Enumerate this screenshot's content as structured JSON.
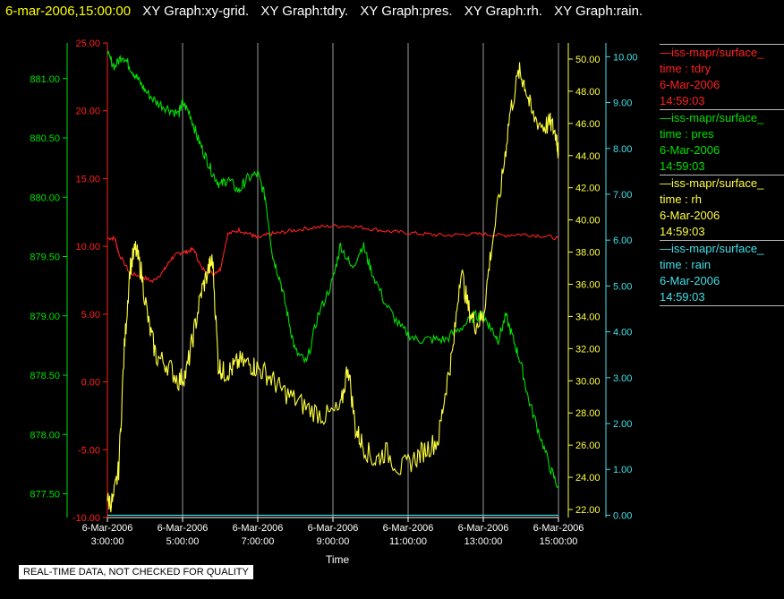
{
  "header": {
    "timestamp": "6-mar-2006,15:00:00",
    "graphs": [
      "XY Graph:xy-grid.",
      "XY Graph:tdry.",
      "XY Graph:pres.",
      "XY Graph:rh.",
      "XY Graph:rain."
    ]
  },
  "legend": [
    {
      "name": "—iss-mapr/surface_",
      "var": "time : tdry",
      "date": "6-Mar-2006",
      "time": "14:59:03",
      "color": "#ff2020"
    },
    {
      "name": "—iss-mapr/surface_",
      "var": "time : pres",
      "date": "6-Mar-2006",
      "time": "14:59:03",
      "color": "#00e000"
    },
    {
      "name": "—iss-mapr/surface_",
      "var": "time : rh",
      "date": "6-Mar-2006",
      "time": "14:59:03",
      "color": "#ffff40"
    },
    {
      "name": "—iss-mapr/surface_",
      "var": "time : rain",
      "date": "6-Mar-2006",
      "time": "14:59:03",
      "color": "#40e0e8"
    }
  ],
  "note": "REAL-TIME DATA, NOT CHECKED FOR QUALITY",
  "chart_data": {
    "type": "line",
    "xlabel": "Time",
    "x_ticks": [
      {
        "date": "6-Mar-2006",
        "time": "3:00:00",
        "h": 3
      },
      {
        "date": "6-Mar-2006",
        "time": "5:00:00",
        "h": 5
      },
      {
        "date": "6-Mar-2006",
        "time": "7:00:00",
        "h": 7
      },
      {
        "date": "6-Mar-2006",
        "time": "9:00:00",
        "h": 9
      },
      {
        "date": "6-Mar-2006",
        "time": "11:00:00",
        "h": 11
      },
      {
        "date": "6-Mar-2006",
        "time": "13:00:00",
        "h": 13
      },
      {
        "date": "6-Mar-2006",
        "time": "15:00:00",
        "h": 15
      }
    ],
    "xlim": [
      3,
      15
    ],
    "grid": "vertical",
    "axes": {
      "pres": {
        "ylim": [
          877.3,
          881.3
        ],
        "ticks": [
          "877.50",
          "878.00",
          "878.50",
          "879.00",
          "879.50",
          "880.00",
          "880.50",
          "881.00"
        ],
        "color": "#00e000",
        "side": "left-outer"
      },
      "tdry": {
        "ylim": [
          -10,
          25
        ],
        "ticks": [
          "-10.00",
          "-5.00",
          "0.00",
          "5.00",
          "10.00",
          "15.00",
          "20.00",
          "25.00"
        ],
        "color": "#ff2020",
        "side": "left-inner"
      },
      "rh": {
        "ylim": [
          21.5,
          51
        ],
        "ticks": [
          "22.00",
          "24.00",
          "26.00",
          "28.00",
          "30.00",
          "32.00",
          "34.00",
          "36.00",
          "38.00",
          "40.00",
          "42.00",
          "44.00",
          "46.00",
          "48.00",
          "50.00"
        ],
        "color": "#ffff40",
        "side": "right-inner"
      },
      "rain": {
        "ylim": [
          -0.05,
          10.3
        ],
        "ticks": [
          "0.00",
          "1.00",
          "2.00",
          "3.00",
          "4.00",
          "5.00",
          "6.00",
          "7.00",
          "8.00",
          "9.00",
          "10.00"
        ],
        "color": "#40e0e8",
        "side": "right-outer"
      }
    },
    "series": [
      {
        "name": "tdry",
        "axis": "tdry",
        "color": "#ff2020",
        "x": [
          3.0,
          3.2,
          3.3,
          3.6,
          3.9,
          4.2,
          4.5,
          4.7,
          4.9,
          5.1,
          5.3,
          5.5,
          5.8,
          6.0,
          6.2,
          6.5,
          6.8,
          7.0,
          7.3,
          7.6,
          8.0,
          8.5,
          9.0,
          9.5,
          10.0,
          10.5,
          11.0,
          11.5,
          12.0,
          12.5,
          13.0,
          13.5,
          14.0,
          14.5,
          15.0
        ],
        "y": [
          10.6,
          10.6,
          9.5,
          8.0,
          7.8,
          7.4,
          8.2,
          9.1,
          9.5,
          9.6,
          9.8,
          8.4,
          8.0,
          8.3,
          10.9,
          11.2,
          10.9,
          10.6,
          10.9,
          11.0,
          11.2,
          11.4,
          11.5,
          11.5,
          11.3,
          11.1,
          11.0,
          10.9,
          10.8,
          10.9,
          10.9,
          10.8,
          10.9,
          10.8,
          10.6
        ]
      },
      {
        "name": "pres",
        "axis": "pres",
        "color": "#00e000",
        "x": [
          3.0,
          3.2,
          3.4,
          3.6,
          3.8,
          4.0,
          4.3,
          4.6,
          4.9,
          5.0,
          5.2,
          5.4,
          5.6,
          5.8,
          6.0,
          6.2,
          6.5,
          6.7,
          7.0,
          7.2,
          7.4,
          7.6,
          7.8,
          8.0,
          8.3,
          8.6,
          9.0,
          9.2,
          9.5,
          9.8,
          10.0,
          10.4,
          10.8,
          11.2,
          11.6,
          12.0,
          12.4,
          12.8,
          13.0,
          13.2,
          13.4,
          13.6,
          13.8,
          14.0,
          14.2,
          14.5,
          14.8,
          15.0
        ],
        "y": [
          881.2,
          881.1,
          881.2,
          881.1,
          881.0,
          880.9,
          880.8,
          880.75,
          880.7,
          880.8,
          880.7,
          880.5,
          880.35,
          880.2,
          880.1,
          880.15,
          880.05,
          880.15,
          880.2,
          880.0,
          879.5,
          879.3,
          879.0,
          878.7,
          878.6,
          879.0,
          879.3,
          879.6,
          879.4,
          879.6,
          879.4,
          879.1,
          878.9,
          878.8,
          878.8,
          878.8,
          878.9,
          879.0,
          879.0,
          878.9,
          878.8,
          879.0,
          878.8,
          878.6,
          878.3,
          878.0,
          877.7,
          877.55
        ]
      },
      {
        "name": "rh",
        "axis": "rh",
        "color": "#ffff40",
        "x": [
          3.0,
          3.15,
          3.3,
          3.45,
          3.6,
          3.75,
          3.9,
          4.1,
          4.3,
          4.6,
          4.9,
          5.1,
          5.3,
          5.5,
          5.7,
          5.8,
          5.95,
          6.1,
          6.3,
          6.5,
          6.8,
          7.0,
          7.3,
          7.6,
          8.0,
          8.4,
          8.8,
          9.2,
          9.4,
          9.6,
          9.8,
          10.1,
          10.4,
          10.8,
          11.2,
          11.5,
          11.8,
          12.0,
          12.2,
          12.4,
          12.6,
          12.8,
          13.0,
          13.2,
          13.5,
          13.7,
          13.95,
          14.1,
          14.3,
          14.6,
          14.8,
          14.95,
          15.0
        ],
        "y": [
          22.5,
          22.5,
          24.5,
          32.0,
          37.0,
          38.2,
          36.8,
          33.5,
          31.5,
          31.0,
          30.0,
          30.5,
          33.0,
          35.5,
          37.0,
          37.5,
          31.0,
          30.5,
          30.7,
          31.2,
          31.0,
          30.8,
          30.3,
          29.5,
          28.8,
          28.2,
          27.8,
          28.2,
          31.0,
          27.0,
          26.0,
          25.0,
          25.6,
          24.5,
          25.2,
          25.8,
          26.3,
          29.5,
          32.0,
          37.0,
          34.5,
          33.5,
          34.0,
          38.0,
          42.5,
          46.5,
          49.2,
          48.5,
          46.5,
          45.8,
          46.0,
          45.2,
          44.0
        ]
      },
      {
        "name": "rain",
        "axis": "rain",
        "color": "#40e0e8",
        "x": [
          3.0,
          15.0
        ],
        "y": [
          0.0,
          0.0
        ]
      }
    ]
  }
}
